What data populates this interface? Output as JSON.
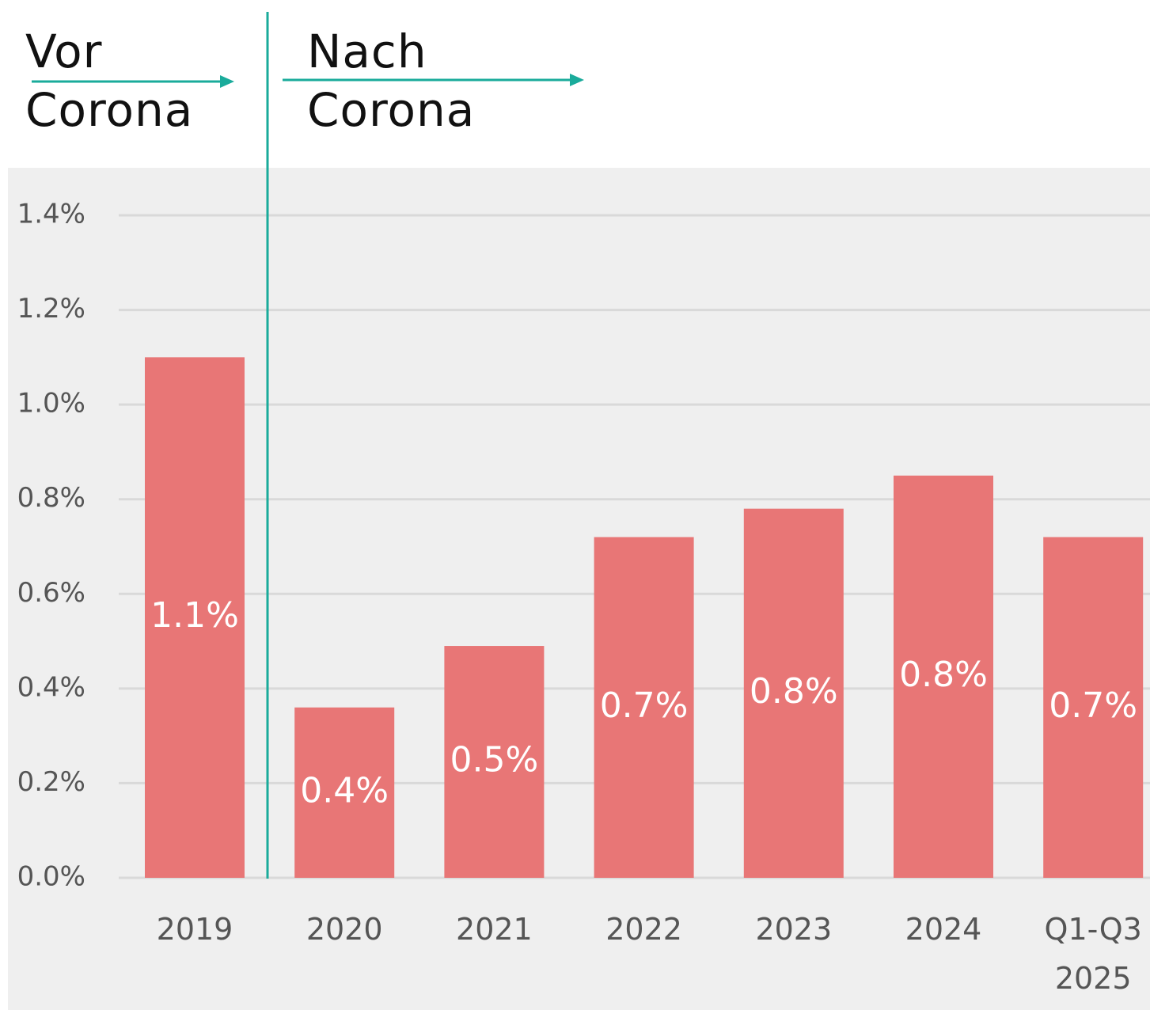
{
  "chart_data": {
    "type": "bar",
    "annotations": [
      {
        "text": "Vor Corona"
      },
      {
        "text": "Nach Corona"
      }
    ],
    "categories": [
      "2019",
      "2020",
      "2021",
      "2022",
      "2023",
      "2024",
      "Q1-Q3 2025"
    ],
    "values": [
      1.1,
      0.36,
      0.49,
      0.72,
      0.78,
      0.85,
      0.72
    ],
    "value_labels": [
      "1.1%",
      "0.4%",
      "0.5%",
      "0.7%",
      "0.8%",
      "0.8%",
      "0.7%"
    ],
    "color": "#e87676",
    "ylim": [
      0,
      1.4
    ],
    "yticks": [
      {
        "value": 0,
        "label": "0.0%"
      },
      {
        "value": 0.2,
        "label": "0.2%"
      },
      {
        "value": 0.4,
        "label": "0.4%"
      },
      {
        "value": 0.6,
        "label": "0.6%"
      },
      {
        "value": 0.8,
        "label": "0.8%"
      },
      {
        "value": 1.0,
        "label": "1.0%"
      },
      {
        "value": 1.2,
        "label": "1.2%"
      },
      {
        "value": 1.4,
        "label": "1.4%"
      }
    ],
    "grid": true
  }
}
